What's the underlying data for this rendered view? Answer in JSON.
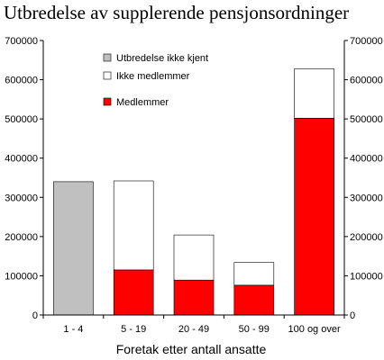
{
  "chart_data": {
    "type": "bar",
    "stacked": true,
    "title": "Utbredelse av supplerende pensjonsordninger",
    "xlabel": "Foretak etter antall ansatte",
    "ylabel": "",
    "ylim": [
      0,
      700000
    ],
    "yticks": [
      "0",
      "100000",
      "200000",
      "300000",
      "400000",
      "500000",
      "600000",
      "700000"
    ],
    "categories": [
      "1 - 4",
      "5 - 19",
      "20 - 49",
      "50 - 99",
      "100 og over"
    ],
    "series": [
      {
        "name": "Medlemmer",
        "color": "#ff0000",
        "values": [
          0,
          115000,
          89000,
          76000,
          502000
        ]
      },
      {
        "name": "Ikke medlemmer",
        "color": "#ffffff",
        "values": [
          0,
          227000,
          115000,
          58000,
          126000
        ]
      },
      {
        "name": "Utbredelse ikke kjent",
        "color": "#c0c0c0",
        "values": [
          340000,
          0,
          0,
          0,
          0
        ]
      }
    ],
    "legend": [
      {
        "name": "Utbredelse ikke kjent",
        "color": "#c0c0c0"
      },
      {
        "name": "Ikke medlemmer",
        "color": "#ffffff"
      },
      {
        "name": "Medlemmer",
        "color": "#ff0000"
      }
    ],
    "grid": false,
    "secondary_y_axis": true,
    "legend_position": "top-left inside plot"
  }
}
